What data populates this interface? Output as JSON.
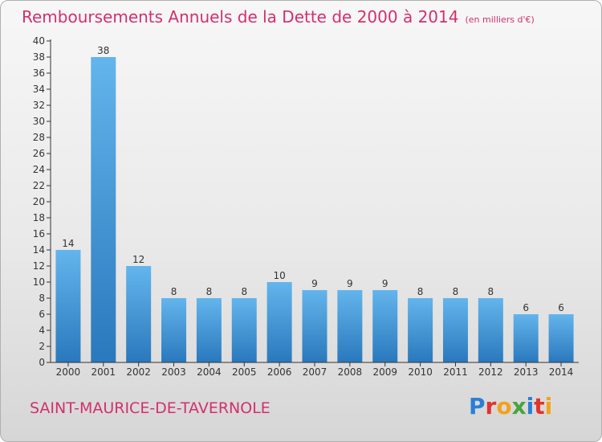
{
  "title": "Remboursements Annuels de la Dette de 2000 à 2014",
  "unit": "(en milliers d'€)",
  "commune": "SAINT-MAURICE-DE-TAVERNOLE",
  "logo": {
    "text": "Proxiti",
    "letters": [
      {
        "ch": "P",
        "color": "#2a7fd4"
      },
      {
        "ch": "r",
        "color": "#e0332e"
      },
      {
        "ch": "o",
        "color": "#f2a21b"
      },
      {
        "ch": "x",
        "color": "#46a53c"
      },
      {
        "ch": "i",
        "color": "#2a7fd4"
      },
      {
        "ch": "t",
        "color": "#e0332e"
      },
      {
        "ch": "i",
        "color": "#f2a21b"
      }
    ]
  },
  "colors": {
    "title": "#d2306e",
    "bar_top": "#63b5ec",
    "bar_bottom": "#2a78bd",
    "axis": "#333333"
  },
  "chart_data": {
    "type": "bar",
    "categories": [
      "2000",
      "2001",
      "2002",
      "2003",
      "2004",
      "2005",
      "2006",
      "2007",
      "2008",
      "2009",
      "2010",
      "2011",
      "2012",
      "2013",
      "2014"
    ],
    "values": [
      14,
      38,
      12,
      8,
      8,
      8,
      10,
      9,
      9,
      9,
      8,
      8,
      8,
      6,
      6
    ],
    "ylim": [
      0,
      40
    ],
    "ytick_step": 2,
    "grid": false,
    "legend": "none"
  }
}
